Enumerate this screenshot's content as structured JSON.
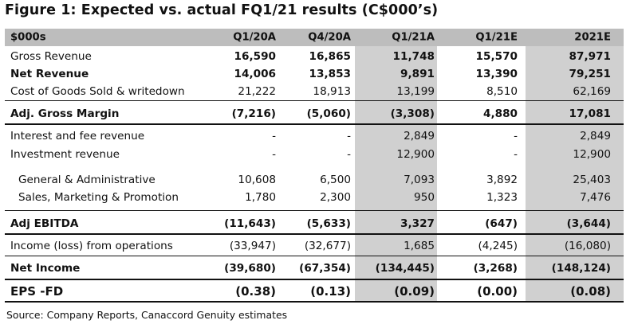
{
  "title": "Figure 1: Expected vs. actual FQ1/21 results (C$000’s)",
  "columns": [
    "$000s",
    "Q1/20A",
    "Q4/20A",
    "Q1/21A",
    "Q1/21E",
    "2021E"
  ],
  "rows": {
    "gross_revenue": [
      "Gross Revenue",
      "16,590",
      "16,865",
      "11,748",
      "15,570",
      "87,971"
    ],
    "net_revenue": [
      "Net Revenue",
      "14,006",
      "13,853",
      "9,891",
      "13,390",
      "79,251"
    ],
    "cogs": [
      "Cost of Goods Sold & writedown",
      "21,222",
      "18,913",
      "13,199",
      "8,510",
      "62,169"
    ],
    "adj_gross_margin": [
      "Adj. Gross Margin",
      "(7,216)",
      "(5,060)",
      "(3,308)",
      "4,880",
      "17,081"
    ],
    "interest_fee": [
      "Interest and fee revenue",
      "-",
      "-",
      "2,849",
      "-",
      "2,849"
    ],
    "investment": [
      "Investment revenue",
      "-",
      "-",
      "12,900",
      "-",
      "12,900"
    ],
    "g_and_a": [
      "General & Administrative",
      "10,608",
      "6,500",
      "7,093",
      "3,892",
      "25,403"
    ],
    "smp": [
      "Sales, Marketing & Promotion",
      "1,780",
      "2,300",
      "950",
      "1,323",
      "7,476"
    ],
    "adj_ebitda": [
      "Adj EBITDA",
      "(11,643)",
      "(5,633)",
      "3,327",
      "(647)",
      "(3,644)"
    ],
    "income_ops": [
      "Income (loss) from operations",
      "(33,947)",
      "(32,677)",
      "1,685",
      "(4,245)",
      "(16,080)"
    ],
    "net_income": [
      "Net Income",
      "(39,680)",
      "(67,354)",
      "(134,445)",
      "(3,268)",
      "(148,124)"
    ],
    "eps": [
      "EPS -FD",
      "(0.38)",
      "(0.13)",
      "(0.09)",
      "(0.00)",
      "(0.08)"
    ]
  },
  "source": "Source: Company Reports, Canaccord Genuity estimates",
  "colors": {
    "header_bg": "#bdbdbd",
    "shade": "#d0d0d0",
    "text": "#111111"
  }
}
